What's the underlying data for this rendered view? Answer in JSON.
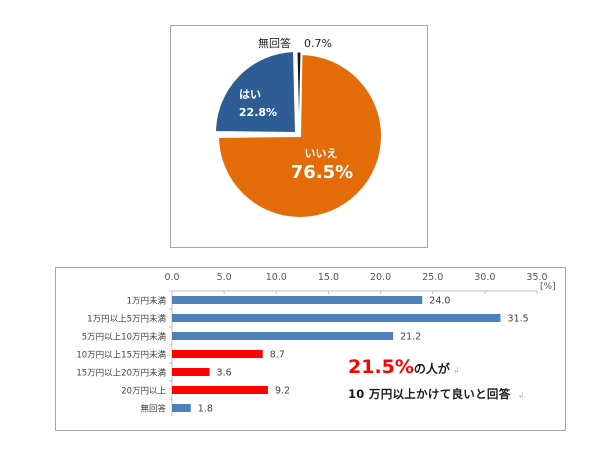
{
  "chart_data": [
    {
      "type": "pie",
      "title": "",
      "slices": [
        {
          "label": "いいえ",
          "value": 76.5,
          "display": "76.5%",
          "color": "#e36c09"
        },
        {
          "label": "はい",
          "value": 22.8,
          "display": "22.8%",
          "color": "#2e5c95"
        },
        {
          "label": "無回答",
          "value": 0.7,
          "display": "0.7%",
          "color": "#1a1a1a"
        }
      ]
    },
    {
      "type": "bar",
      "orientation": "horizontal",
      "title": "",
      "categories": [
        "1万円未満",
        "1万円以上5万円未満",
        "5万円以上10万円未満",
        "10万円以上15万円未満",
        "15万円以上20万円未満",
        "20万円以上",
        "無回答"
      ],
      "values": [
        24.0,
        31.5,
        21.2,
        8.7,
        3.6,
        9.2,
        1.8
      ],
      "value_labels": [
        "24.0",
        "31.5",
        "21.2",
        "8.7",
        "3.6",
        "9.2",
        "1.8"
      ],
      "colors": [
        "#4f81bd",
        "#4f81bd",
        "#4f81bd",
        "#ff0000",
        "#ff0000",
        "#ff0000",
        "#4f81bd"
      ],
      "xlabel": "",
      "ylabel": "",
      "unit_label": "[%]",
      "xlim": [
        0,
        35
      ],
      "ticks": [
        "0.0",
        "5.0",
        "10.0",
        "15.0",
        "20.0",
        "25.0",
        "30.0",
        "35.0"
      ],
      "axis_position": "top",
      "grid": false
    }
  ],
  "pie": {
    "no_answer_label": "無回答",
    "no_answer_value": "0.7%",
    "yes_label": "はい",
    "yes_value": "22.8%",
    "no_label": "いいえ",
    "no_value": "76.5%"
  },
  "bar": {
    "unit": "[%]",
    "ticks": [
      "0.0",
      "5.0",
      "10.0",
      "15.0",
      "20.0",
      "25.0",
      "30.0",
      "35.0"
    ],
    "categories": [
      "1万円未満",
      "1万円以上5万円未満",
      "5万円以上10万円未満",
      "10万円以上15万円未満",
      "15万円以上20万円未満",
      "20万円以上",
      "無回答"
    ],
    "value_labels": [
      "24.0",
      "31.5",
      "21.2",
      "8.7",
      "3.6",
      "9.2",
      "1.8"
    ]
  },
  "callout": {
    "highlight": "21.5%",
    "line1_rest": "の人が",
    "line2": "10 万円以上かけて良いと回答"
  },
  "colors": {
    "orange": "#e36c09",
    "blue_dark": "#2e5c95",
    "blue_bar": "#4f81bd",
    "red": "#ff0000"
  }
}
